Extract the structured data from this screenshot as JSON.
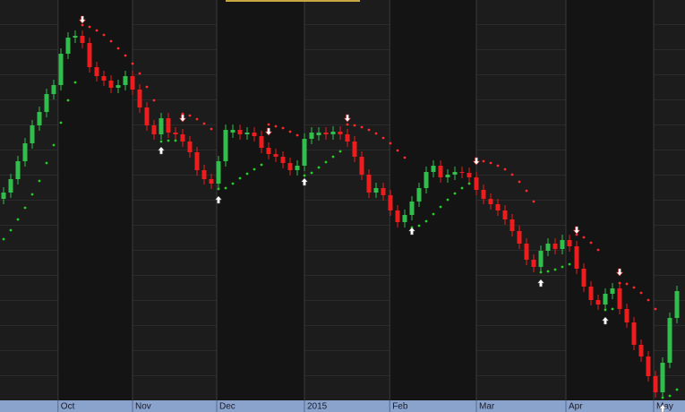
{
  "chart_data": {
    "type": "candlestick",
    "ohlc": [
      [
        22.5,
        23.8,
        21.9,
        23.2
      ],
      [
        23.2,
        25.3,
        22.6,
        24.7
      ],
      [
        24.7,
        27.3,
        24.1,
        26.7
      ],
      [
        26.7,
        29.3,
        26.1,
        28.7
      ],
      [
        28.7,
        31.3,
        28.1,
        30.7
      ],
      [
        30.7,
        32.8,
        30.1,
        32.2
      ],
      [
        32.2,
        34.8,
        31.6,
        34.2
      ],
      [
        34.2,
        35.8,
        33.6,
        35.2
      ],
      [
        35.2,
        39.3,
        34.6,
        38.7
      ],
      [
        38.7,
        41.1,
        38.1,
        40.5
      ],
      [
        40.5,
        41.3,
        39.9,
        40.7
      ],
      [
        40.7,
        41.3,
        39.3,
        39.9
      ],
      [
        39.9,
        40.5,
        36.6,
        37.2
      ],
      [
        37.2,
        37.8,
        35.6,
        36.2
      ],
      [
        36.2,
        36.8,
        35.1,
        35.7
      ],
      [
        35.7,
        36.3,
        34.3,
        34.9
      ],
      [
        34.9,
        35.8,
        34.3,
        35.2
      ],
      [
        35.2,
        36.8,
        34.6,
        36.2
      ],
      [
        36.2,
        36.8,
        34.1,
        34.7
      ],
      [
        34.7,
        35.3,
        32.1,
        32.7
      ],
      [
        32.7,
        33.3,
        30.1,
        30.7
      ],
      [
        30.7,
        31.3,
        29.1,
        29.7
      ],
      [
        29.7,
        32.1,
        29.1,
        31.5
      ],
      [
        31.5,
        32.1,
        29.3,
        29.9
      ],
      [
        29.9,
        30.5,
        29.1,
        29.7
      ],
      [
        29.7,
        30.3,
        28.3,
        28.9
      ],
      [
        28.9,
        29.5,
        27.1,
        27.7
      ],
      [
        27.7,
        28.3,
        25.1,
        25.7
      ],
      [
        25.7,
        26.3,
        24.1,
        24.7
      ],
      [
        24.7,
        25.3,
        23.6,
        24.2
      ],
      [
        24.2,
        27.3,
        23.6,
        26.7
      ],
      [
        26.7,
        30.8,
        26.1,
        30.2
      ],
      [
        29.9,
        30.8,
        29.3,
        30.2
      ],
      [
        30.2,
        30.8,
        29.1,
        29.7
      ],
      [
        29.7,
        30.5,
        29.1,
        29.9
      ],
      [
        29.9,
        30.5,
        28.9,
        29.5
      ],
      [
        29.5,
        30.1,
        27.6,
        28.2
      ],
      [
        28.2,
        28.8,
        26.9,
        27.5
      ],
      [
        27.5,
        28.1,
        26.6,
        27.2
      ],
      [
        27.2,
        27.8,
        25.9,
        26.5
      ],
      [
        26.5,
        27.1,
        25.1,
        25.7
      ],
      [
        25.7,
        26.8,
        25.1,
        26.2
      ],
      [
        26.2,
        29.8,
        25.6,
        29.2
      ],
      [
        29.2,
        30.5,
        28.6,
        29.9
      ],
      [
        29.6,
        30.5,
        29.0,
        29.9
      ],
      [
        29.9,
        30.5,
        29.1,
        29.7
      ],
      [
        29.7,
        30.6,
        29.1,
        30.0
      ],
      [
        30.0,
        30.6,
        29.1,
        29.7
      ],
      [
        29.7,
        30.3,
        28.3,
        28.9
      ],
      [
        28.9,
        29.5,
        26.6,
        27.2
      ],
      [
        27.2,
        27.8,
        24.6,
        25.2
      ],
      [
        25.2,
        25.8,
        22.6,
        23.2
      ],
      [
        23.2,
        24.3,
        22.6,
        23.7
      ],
      [
        23.7,
        24.3,
        22.3,
        22.9
      ],
      [
        22.9,
        23.5,
        20.6,
        21.2
      ],
      [
        21.2,
        21.8,
        19.3,
        19.9
      ],
      [
        19.9,
        21.3,
        19.3,
        20.7
      ],
      [
        20.7,
        22.8,
        20.1,
        22.2
      ],
      [
        22.2,
        24.3,
        21.6,
        23.7
      ],
      [
        23.7,
        26.1,
        23.1,
        25.5
      ],
      [
        25.5,
        26.8,
        24.9,
        26.2
      ],
      [
        26.2,
        26.8,
        24.3,
        24.9
      ],
      [
        24.9,
        25.8,
        24.3,
        25.2
      ],
      [
        25.2,
        26.1,
        24.6,
        25.5
      ],
      [
        25.5,
        26.1,
        24.8,
        25.4
      ],
      [
        25.4,
        26.0,
        24.3,
        24.9
      ],
      [
        24.9,
        25.5,
        22.9,
        23.5
      ],
      [
        23.5,
        24.1,
        21.9,
        22.5
      ],
      [
        22.5,
        23.1,
        21.3,
        21.9
      ],
      [
        21.9,
        22.5,
        20.6,
        21.2
      ],
      [
        21.2,
        21.8,
        19.6,
        20.2
      ],
      [
        20.2,
        20.8,
        18.3,
        18.9
      ],
      [
        18.9,
        19.5,
        16.9,
        17.5
      ],
      [
        17.5,
        18.1,
        15.1,
        15.7
      ],
      [
        15.7,
        16.3,
        14.3,
        14.9
      ],
      [
        14.9,
        17.3,
        14.3,
        16.7
      ],
      [
        16.7,
        18.1,
        16.1,
        17.5
      ],
      [
        17.5,
        18.1,
        16.3,
        16.9
      ],
      [
        16.9,
        18.5,
        16.3,
        17.9
      ],
      [
        17.9,
        18.5,
        16.6,
        17.2
      ],
      [
        17.2,
        17.8,
        14.1,
        14.7
      ],
      [
        14.7,
        15.3,
        12.1,
        12.7
      ],
      [
        12.7,
        13.3,
        10.6,
        11.2
      ],
      [
        11.2,
        11.8,
        10.1,
        10.7
      ],
      [
        10.7,
        12.5,
        10.1,
        11.9
      ],
      [
        11.9,
        13.1,
        11.3,
        12.5
      ],
      [
        12.5,
        13.1,
        9.6,
        10.2
      ],
      [
        10.2,
        10.8,
        8.1,
        8.7
      ],
      [
        8.7,
        9.3,
        5.6,
        6.2
      ],
      [
        6.2,
        6.8,
        4.3,
        4.9
      ],
      [
        4.9,
        5.5,
        2.1,
        2.7
      ],
      [
        2.7,
        3.3,
        0.3,
        0.9
      ],
      [
        0.9,
        4.8,
        0.3,
        4.2
      ],
      [
        4.2,
        9.8,
        3.6,
        9.2
      ],
      [
        9.2,
        12.8,
        8.6,
        12.2
      ]
    ],
    "sar": [
      18.0,
      19.0,
      20.2,
      21.5,
      23.0,
      24.5,
      26.5,
      28.5,
      31.0,
      33.5,
      35.5,
      41.9,
      41.7,
      41.3,
      40.8,
      40.1,
      39.3,
      38.5,
      37.6,
      36.5,
      35.0,
      33.5,
      28.9,
      29.0,
      29.0,
      32.0,
      31.8,
      31.4,
      30.9,
      30.3,
      23.6,
      23.7,
      24.2,
      24.8,
      25.3,
      25.8,
      26.3,
      30.8,
      30.6,
      30.4,
      30.0,
      29.6,
      25.1,
      25.4,
      26.0,
      26.6,
      27.2,
      27.8,
      30.8,
      30.7,
      30.5,
      30.2,
      29.8,
      29.3,
      28.7,
      27.9,
      27.1,
      19.3,
      19.5,
      20.0,
      20.8,
      21.6,
      22.4,
      23.1,
      23.7,
      24.2,
      26.8,
      26.7,
      26.5,
      26.2,
      25.8,
      25.2,
      24.4,
      23.4,
      22.2,
      14.3,
      14.4,
      14.6,
      14.9,
      15.2,
      18.5,
      18.2,
      17.6,
      16.8,
      10.1,
      10.2,
      13.1,
      13.0,
      12.6,
      12.0,
      11.2,
      10.2,
      0.3,
      0.5,
      1.2
    ],
    "up_color": "#2fbf4a",
    "down_color": "#ee1c1c",
    "sar_up_color": "#22d022",
    "sar_down_color": "#ff2a2a",
    "xlim": [
      -0.5,
      95.125
    ],
    "ylim": [
      0,
      44.7
    ],
    "xticks": [
      {
        "value": 7.6,
        "label": "Oct"
      },
      {
        "value": 18.0,
        "label": "Nov"
      },
      {
        "value": 29.75,
        "label": "Dec"
      },
      {
        "value": 42.0,
        "label": "2015"
      },
      {
        "value": 53.9,
        "label": "Feb"
      },
      {
        "value": 66.0,
        "label": "Mar"
      },
      {
        "value": 78.5,
        "label": "Apr"
      },
      {
        "value": 90.75,
        "label": "May"
      }
    ]
  }
}
